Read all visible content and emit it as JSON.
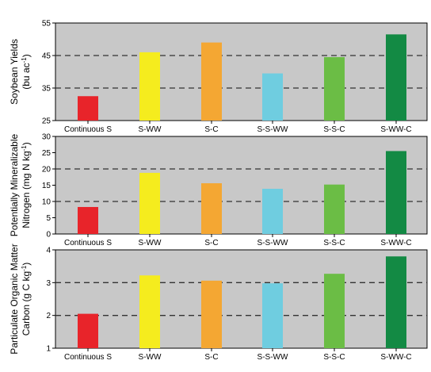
{
  "colors": {
    "plot_bg": "#c8c8c8",
    "bars": [
      "#e8242a",
      "#f5ec1e",
      "#f4a733",
      "#6fcde0",
      "#6bbd45",
      "#138a44"
    ],
    "reference_line": "#333333"
  },
  "chart_data": [
    {
      "type": "bar",
      "categories": [
        "Continuous S",
        "S-WW",
        "S-C",
        "S-S-WW",
        "S-S-C",
        "S-WW-C"
      ],
      "values": [
        32.5,
        46,
        49,
        39.5,
        44.5,
        51.5
      ],
      "ylabel_line1": "Soybean Yields",
      "ylabel_line2": "(bu ac",
      "ylabel_sup": "-1",
      "ylabel_close": ")",
      "ylim": [
        25,
        55
      ],
      "yticks": [
        25,
        35,
        45,
        55
      ],
      "reference_lines": [
        35,
        45
      ]
    },
    {
      "type": "bar",
      "categories": [
        "Continuous S",
        "S-WW",
        "S-C",
        "S-S-WW",
        "S-S-C",
        "S-WW-C"
      ],
      "values": [
        8.3,
        18.8,
        15.6,
        13.9,
        15.2,
        25.5
      ],
      "ylabel_line1": "Potentially Mineralizable",
      "ylabel_line2": "Nitrogen (mg N kg",
      "ylabel_sup": "-1",
      "ylabel_close": ")",
      "ylim": [
        0,
        30
      ],
      "yticks": [
        0,
        5,
        10,
        15,
        20,
        25,
        30
      ],
      "reference_lines": [
        10,
        20
      ]
    },
    {
      "type": "bar",
      "categories": [
        "Continuous S",
        "S-WW",
        "S-C",
        "S-S-WW",
        "S-S-C",
        "S-WW-C"
      ],
      "values": [
        2.05,
        3.22,
        3.06,
        2.98,
        3.27,
        3.8
      ],
      "ylabel_line1": "Particulate Organic Matter",
      "ylabel_line2": "Carbon (g C kg",
      "ylabel_sup": "-1",
      "ylabel_close": ")",
      "ylim": [
        1,
        4
      ],
      "yticks": [
        1,
        2,
        3,
        4
      ],
      "reference_lines": [
        2,
        3
      ]
    }
  ]
}
